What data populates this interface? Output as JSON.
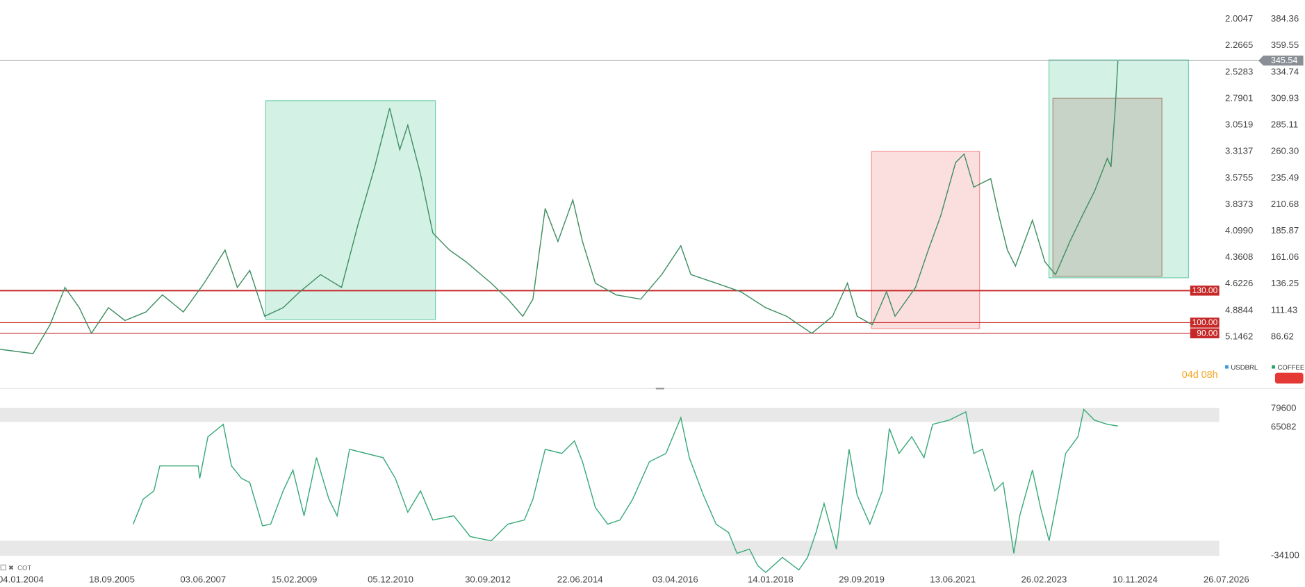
{
  "timer": "04d 08h",
  "chart_data": [
    {
      "type": "line",
      "xlim": [
        "2003-08-15",
        "2026-12-24"
      ],
      "ylim": [
        43.7,
        402.3
      ],
      "yticks": [
        384.36,
        359.55,
        334.74,
        309.93,
        285.11,
        {
          "value": 260.3,
          "label": "260.30"
        },
        235.49,
        210.68,
        185.87,
        161.06,
        136.25,
        111.43,
        86.62
      ],
      "y2_name": "USDBRL",
      "y2_color": "#3a9ad9",
      "y2_inverted": true,
      "y2lim": [
        1.8155,
        5.599
      ],
      "y2ticks": [
        2.0047,
        2.2665,
        2.5283,
        2.7901,
        3.0519,
        3.3137,
        3.5755,
        3.8373,
        {
          "value": 4.099,
          "label": "4.0990"
        },
        4.3608,
        4.6226,
        4.8844,
        5.1462
      ],
      "levels": [
        {
          "value": 130,
          "label": "130.00"
        },
        {
          "value": 100,
          "label": "100.00"
        },
        {
          "value": 90,
          "label": "90.00"
        }
      ],
      "level_color": "#c62828",
      "zones": [
        {
          "x": [
            "2008-08-04",
            "2011-10-08"
          ],
          "y": [
            103,
            308
          ],
          "color": "#3dbf8f"
        },
        {
          "x": [
            "2019-12-05",
            "2021-12-13"
          ],
          "y": [
            94.4,
            260.4
          ],
          "color": "#ef6b6b"
        },
        {
          "x": [
            "2023-04-01",
            "2025-11-10"
          ],
          "y": [
            142,
            346.2
          ],
          "color": "#3dbf8f"
        },
        {
          "x": [
            "2023-04-28",
            "2025-05-12"
          ],
          "y": [
            143.5,
            310.3
          ],
          "color": "#9a6b55"
        }
      ],
      "x": [
        "2003-08-15",
        "2004-03-28",
        "2004-07-22",
        "2004-11-01",
        "2005-02-07",
        "2005-05-01",
        "2005-08-25",
        "2005-12-16",
        "2006-05-08",
        "2006-08-29",
        "2007-01-19",
        "2007-06-10",
        "2007-10-31",
        "2008-01-23",
        "2008-04-17",
        "2008-07-28",
        "2008-12-01",
        "2009-03-26",
        "2009-08-14",
        "2010-01-04",
        "2010-04-27",
        "2010-08-19",
        "2010-11-29",
        "2011-02-06",
        "2011-04-02",
        "2011-06-28",
        "2011-09-20",
        "2012-01-12",
        "2012-05-04",
        "2012-10-23",
        "2013-02-14",
        "2013-05-27",
        "2013-08-04",
        "2013-10-27",
        "2014-01-22",
        "2014-05-04",
        "2014-07-09",
        "2014-10-05",
        "2015-02-24",
        "2015-08-11",
        "2016-01-01",
        "2016-05-11",
        "2016-07-19",
        "2017-01-07",
        "2017-06-25",
        "2017-12-12",
        "2018-05-04",
        "2018-10-23",
        "2019-03-14",
        "2019-06-24",
        "2019-08-29",
        "2019-12-10",
        "2020-03-17",
        "2020-05-14",
        "2020-10-01",
        "2020-12-27",
        "2021-03-22",
        "2021-07-02",
        "2021-08-29",
        "2021-11-03",
        "2022-02-27",
        "2022-04-24",
        "2022-06-21",
        "2022-08-15",
        "2022-12-09",
        "2023-03-04",
        "2023-05-16",
        "2023-08-22",
        "2023-11-14",
        "2024-02-06",
        "2024-05-04",
        "2024-05-29",
        "2024-06-27",
        "2024-07-15"
      ],
      "series": [
        {
          "name": "COFFEE",
          "color": "#26a269",
          "line_color": "#3f8f62",
          "values": [
            75,
            71,
            98,
            133,
            114,
            90,
            114,
            102,
            110,
            126,
            110,
            137,
            168,
            133,
            149,
            106,
            114,
            129,
            145,
            133,
            192,
            246,
            301,
            262,
            285,
            239,
            184,
            168,
            157,
            137,
            122,
            106,
            122,
            207,
            176,
            215,
            176,
            137,
            126,
            122,
            145,
            172,
            145,
            137,
            129,
            114,
            106,
            90,
            106,
            137,
            106,
            98,
            129,
            106,
            133,
            168,
            200,
            250,
            258,
            227,
            235,
            200,
            168,
            153,
            196,
            157,
            145,
            176,
            200,
            223,
            254,
            246,
            301,
            345.54
          ]
        }
      ]
    },
    {
      "type": "line",
      "label": "COT",
      "xlim": [
        "2003-08-15",
        "2026-12-24"
      ],
      "xticks": [
        {
          "value": "2004-01-04",
          "label": "04.01.2004"
        },
        {
          "value": "2005-09-18",
          "label": "18.09.2005"
        },
        {
          "value": "2007-06-03",
          "label": "03.06.2007"
        },
        {
          "value": "2009-02-15",
          "label": "15.02.2009"
        },
        {
          "value": "2010-12-05",
          "label": "05.12.2010"
        },
        {
          "value": "2012-09-30",
          "label": "30.09.2012"
        },
        {
          "value": "2014-06-22",
          "label": "22.06.2014"
        },
        {
          "value": "2016-04-03",
          "label": "03.04.2016"
        },
        {
          "value": "2018-01-14",
          "label": "14.01.2018"
        },
        {
          "value": "2019-09-29",
          "label": "29.09.2019"
        },
        {
          "value": "2021-06-13",
          "label": "13.06.2021"
        },
        {
          "value": "2023-02-26",
          "label": "26.02.2023"
        },
        {
          "value": "2024-11-10",
          "label": "10.11.2024"
        },
        {
          "value": "2026-07-26",
          "label": "26.07.2026"
        }
      ],
      "ylim": [
        -48230,
        86665
      ],
      "yticks": [
        79600,
        65082,
        -34100
      ],
      "bands": [
        [
          69300,
          80200
        ],
        [
          -34100,
          -22500
        ]
      ],
      "x": [
        "2006-02-10",
        "2006-04-20",
        "2006-07-02",
        "2006-08-11",
        "2007-04-30",
        "2007-05-11",
        "2007-07-06",
        "2007-10-19",
        "2007-12-14",
        "2008-02-21",
        "2008-04-17",
        "2008-07-13",
        "2008-09-07",
        "2008-12-01",
        "2009-02-06",
        "2009-04-23",
        "2009-07-17",
        "2009-10-10",
        "2009-12-05",
        "2010-02-28",
        "2010-06-21",
        "2010-10-15",
        "2011-01-07",
        "2011-04-02",
        "2011-06-28",
        "2011-09-20",
        "2012-02-10",
        "2012-06-02",
        "2012-10-23",
        "2013-02-14",
        "2013-06-07",
        "2013-08-04",
        "2013-10-27",
        "2014-02-17",
        "2014-05-15",
        "2014-07-09",
        "2014-10-05",
        "2014-12-28",
        "2015-03-22",
        "2015-06-17",
        "2015-10-09",
        "2016-01-30",
        "2016-05-11",
        "2016-07-08",
        "2016-10-12",
        "2017-01-07",
        "2017-04-02",
        "2017-05-30",
        "2017-08-23",
        "2017-10-19",
        "2017-12-12",
        "2018-04-05",
        "2018-07-27",
        "2018-09-24",
        "2018-11-21",
        "2019-01-15",
        "2019-04-09",
        "2019-07-05",
        "2019-08-29",
        "2019-11-24",
        "2020-02-17",
        "2020-04-05",
        "2020-06-10",
        "2020-09-05",
        "2020-11-28",
        "2021-01-26",
        "2021-05-19",
        "2021-09-10",
        "2021-11-03",
        "2022-01-01",
        "2022-03-26",
        "2022-05-23",
        "2022-08-04",
        "2022-09-13",
        "2022-12-09",
        "2023-02-02",
        "2023-04-02",
        "2023-05-27",
        "2023-07-24",
        "2023-10-16",
        "2023-11-25",
        "2024-02-06",
        "2024-05-04",
        "2024-07-15"
      ],
      "series": [
        {
          "color": "#3aaa7a",
          "values": [
            -9680,
            9590,
            16010,
            35280,
            35280,
            25650,
            57760,
            67390,
            35280,
            25650,
            22440,
            -10960,
            -9680,
            16010,
            32070,
            -3260,
            41700,
            9590,
            -3260,
            48130,
            44920,
            41700,
            25650,
            -440,
            16010,
            -6470,
            -3260,
            -19310,
            -22520,
            -9680,
            -6470,
            9590,
            48130,
            44920,
            54550,
            38490,
            3170,
            -9680,
            -6470,
            9590,
            38490,
            44920,
            72530,
            41700,
            12800,
            -9680,
            -16100,
            -32160,
            -28950,
            -41790,
            -46930,
            -35370,
            -45000,
            -35370,
            -16100,
            6380,
            -28950,
            48130,
            12800,
            -9680,
            16010,
            64190,
            44920,
            57760,
            41700,
            67390,
            70600,
            77030,
            44920,
            48130,
            16010,
            22440,
            -32160,
            -3260,
            32070,
            3170,
            -22520,
            9590,
            44920,
            57760,
            78960,
            70600,
            67390,
            66110
          ]
        }
      ]
    }
  ]
}
